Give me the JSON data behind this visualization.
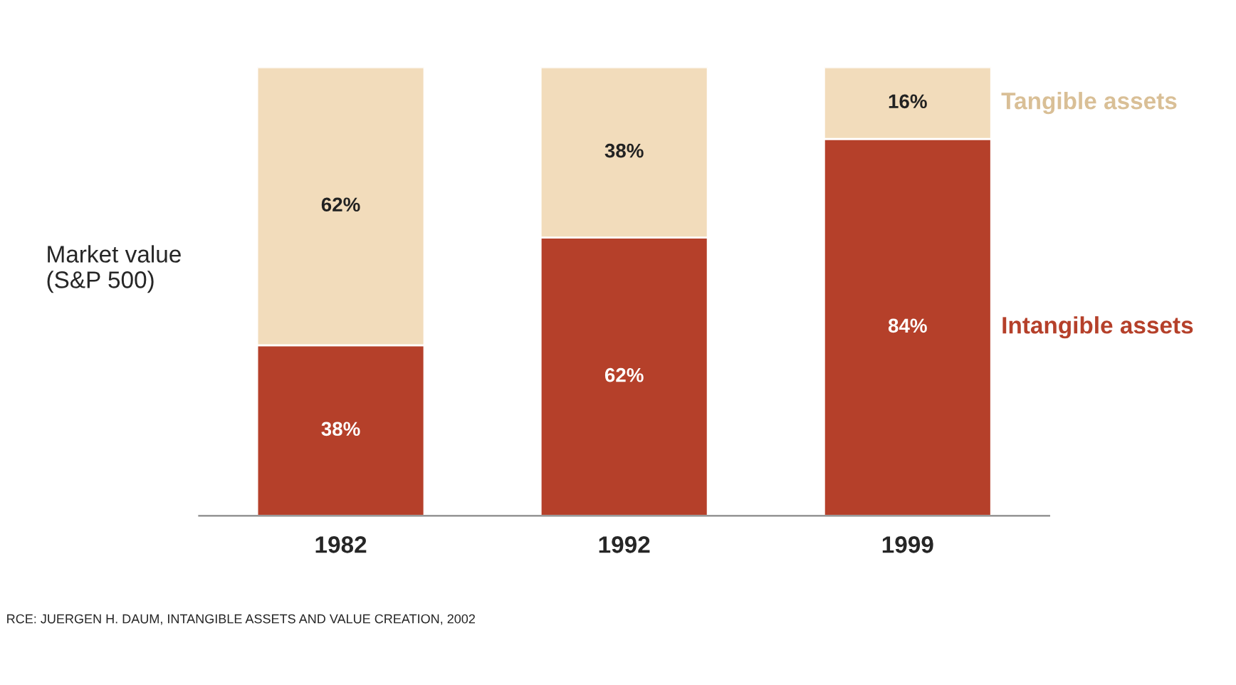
{
  "chart_data": {
    "type": "bar",
    "stacked": true,
    "ylabel": "Market value\n(S&P 500)",
    "categories": [
      "1982",
      "1992",
      "1999"
    ],
    "series": [
      {
        "name": "Intangible assets",
        "color": "#b5402a",
        "values": [
          38,
          62,
          84
        ],
        "value_labels": [
          "38%",
          "62%",
          "84%"
        ]
      },
      {
        "name": "Tangible assets",
        "color": "#f2dcbb",
        "values": [
          62,
          38,
          16
        ],
        "value_labels": [
          "62%",
          "38%",
          "16%"
        ]
      }
    ],
    "annotations": [
      "RCE: JUERGEN H. DAUM, INTANGIBLE ASSETS AND VALUE CREATION, 2002"
    ]
  }
}
